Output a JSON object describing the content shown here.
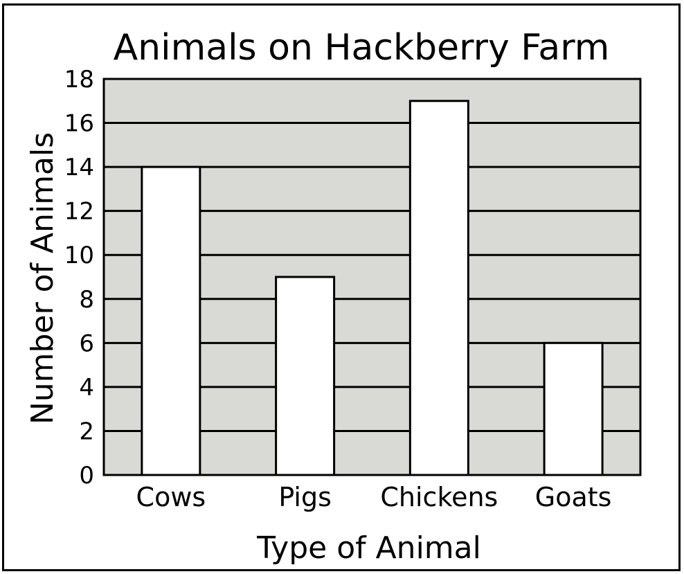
{
  "chart_data": {
    "type": "bar",
    "title": "Animals on Hackberry Farm",
    "xlabel": "Type of Animal",
    "ylabel": "Number of Animals",
    "categories": [
      "Cows",
      "Pigs",
      "Chickens",
      "Goats"
    ],
    "values": [
      14,
      9,
      17,
      6
    ],
    "ylim": [
      0,
      18
    ],
    "yticks": [
      "0",
      "2",
      "4",
      "6",
      "8",
      "10",
      "12",
      "14",
      "16",
      "18"
    ],
    "grid": true,
    "legend": "none",
    "colors": {
      "plot_background": "#d9d9d6",
      "bar_fill": "#ffffff",
      "lines": "#000000"
    }
  }
}
